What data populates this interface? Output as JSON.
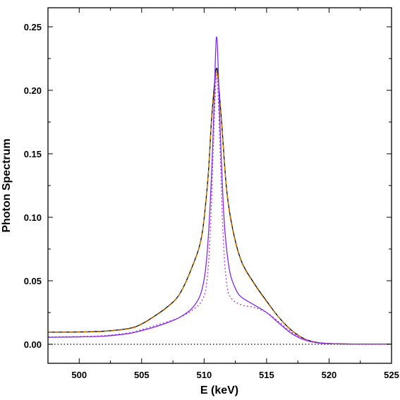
{
  "chart_data": {
    "type": "line",
    "title": "",
    "xlabel": "E (keV)",
    "ylabel": "Photon Spectrum",
    "xlim": [
      497.5,
      525
    ],
    "ylim": [
      -0.015,
      0.265
    ],
    "x_ticks": [
      500,
      505,
      510,
      515,
      520,
      525
    ],
    "x_tick_labels": [
      "500",
      "505",
      "510",
      "515",
      "520",
      "525"
    ],
    "y_ticks": [
      0.0,
      0.05,
      0.1,
      0.15,
      0.2,
      0.25
    ],
    "y_tick_labels": [
      "0.00",
      "0.05",
      "0.10",
      "0.15",
      "0.20",
      "0.25"
    ],
    "grid": false,
    "legend": "none",
    "baseline": {
      "y": 0.0,
      "style": "dotted",
      "color": "#000000"
    },
    "series": [
      {
        "color": "#000000",
        "style": "solid",
        "points": [
          [
            497.5,
            0.0095
          ],
          [
            500,
            0.0097
          ],
          [
            502,
            0.0103
          ],
          [
            504,
            0.0125
          ],
          [
            505,
            0.016
          ],
          [
            506,
            0.022
          ],
          [
            507,
            0.029
          ],
          [
            508,
            0.039
          ],
          [
            509,
            0.06
          ],
          [
            509.8,
            0.085
          ],
          [
            510.3,
            0.13
          ],
          [
            510.6,
            0.178
          ],
          [
            510.9,
            0.212
          ],
          [
            511,
            0.217
          ],
          [
            511.1,
            0.212
          ],
          [
            511.4,
            0.175
          ],
          [
            511.8,
            0.122
          ],
          [
            512.3,
            0.09
          ],
          [
            513,
            0.065
          ],
          [
            514,
            0.048
          ],
          [
            515,
            0.034
          ],
          [
            516,
            0.021
          ],
          [
            517,
            0.011
          ],
          [
            518,
            0.0045
          ],
          [
            519,
            0.0015
          ],
          [
            520,
            0.0006
          ],
          [
            522,
            0.0002
          ],
          [
            525,
            0.0001
          ]
        ]
      },
      {
        "color": "#e08000",
        "style": "dashed",
        "points": [
          [
            497.5,
            0.0093
          ],
          [
            500,
            0.0095
          ],
          [
            502,
            0.0101
          ],
          [
            504,
            0.0122
          ],
          [
            505,
            0.0157
          ],
          [
            506,
            0.0217
          ],
          [
            507,
            0.0287
          ],
          [
            508,
            0.0387
          ],
          [
            509,
            0.0595
          ],
          [
            509.8,
            0.0845
          ],
          [
            510.3,
            0.129
          ],
          [
            510.6,
            0.176
          ],
          [
            510.9,
            0.209
          ],
          [
            511,
            0.214
          ],
          [
            511.1,
            0.209
          ],
          [
            511.4,
            0.173
          ],
          [
            511.8,
            0.121
          ],
          [
            512.3,
            0.089
          ],
          [
            513,
            0.0645
          ],
          [
            514,
            0.0475
          ],
          [
            515,
            0.0335
          ],
          [
            516,
            0.0208
          ],
          [
            517,
            0.0108
          ],
          [
            518,
            0.0044
          ],
          [
            519,
            0.0015
          ],
          [
            520,
            0.0006
          ],
          [
            522,
            0.0002
          ],
          [
            525,
            0.0001
          ]
        ]
      },
      {
        "color": "#7d2ae8",
        "style": "solid",
        "points": [
          [
            497.5,
            0.0055
          ],
          [
            500,
            0.0058
          ],
          [
            502,
            0.0064
          ],
          [
            504,
            0.0085
          ],
          [
            505,
            0.0108
          ],
          [
            506,
            0.0135
          ],
          [
            507,
            0.0168
          ],
          [
            508,
            0.021
          ],
          [
            509,
            0.028
          ],
          [
            509.7,
            0.039
          ],
          [
            510.1,
            0.058
          ],
          [
            510.4,
            0.095
          ],
          [
            510.7,
            0.16
          ],
          [
            510.9,
            0.225
          ],
          [
            511,
            0.242
          ],
          [
            511.1,
            0.225
          ],
          [
            511.3,
            0.165
          ],
          [
            511.6,
            0.098
          ],
          [
            512,
            0.06
          ],
          [
            512.5,
            0.044
          ],
          [
            513,
            0.037
          ],
          [
            514,
            0.031
          ],
          [
            515,
            0.025
          ],
          [
            516,
            0.0165
          ],
          [
            517,
            0.0085
          ],
          [
            518,
            0.0035
          ],
          [
            519,
            0.0012
          ],
          [
            520,
            0.0005
          ],
          [
            522,
            0.0002
          ],
          [
            525,
            0.0001
          ]
        ]
      },
      {
        "color": "#b12ee8",
        "style": "dotted",
        "points": [
          [
            497.5,
            0.0058
          ],
          [
            500,
            0.0061
          ],
          [
            502,
            0.0068
          ],
          [
            504,
            0.009
          ],
          [
            505,
            0.0115
          ],
          [
            506,
            0.0145
          ],
          [
            507,
            0.0175
          ],
          [
            508,
            0.021
          ],
          [
            509,
            0.0265
          ],
          [
            509.8,
            0.034
          ],
          [
            510.2,
            0.048
          ],
          [
            510.5,
            0.09
          ],
          [
            510.8,
            0.175
          ],
          [
            511,
            0.212
          ],
          [
            511.2,
            0.175
          ],
          [
            511.5,
            0.09
          ],
          [
            511.8,
            0.048
          ],
          [
            512.2,
            0.036
          ],
          [
            513,
            0.031
          ],
          [
            514,
            0.029
          ],
          [
            515,
            0.025
          ],
          [
            516,
            0.0175
          ],
          [
            517,
            0.0095
          ],
          [
            518,
            0.0042
          ],
          [
            519,
            0.0015
          ],
          [
            520,
            0.0006
          ],
          [
            522,
            0.0002
          ],
          [
            525,
            0.0001
          ]
        ]
      }
    ]
  }
}
